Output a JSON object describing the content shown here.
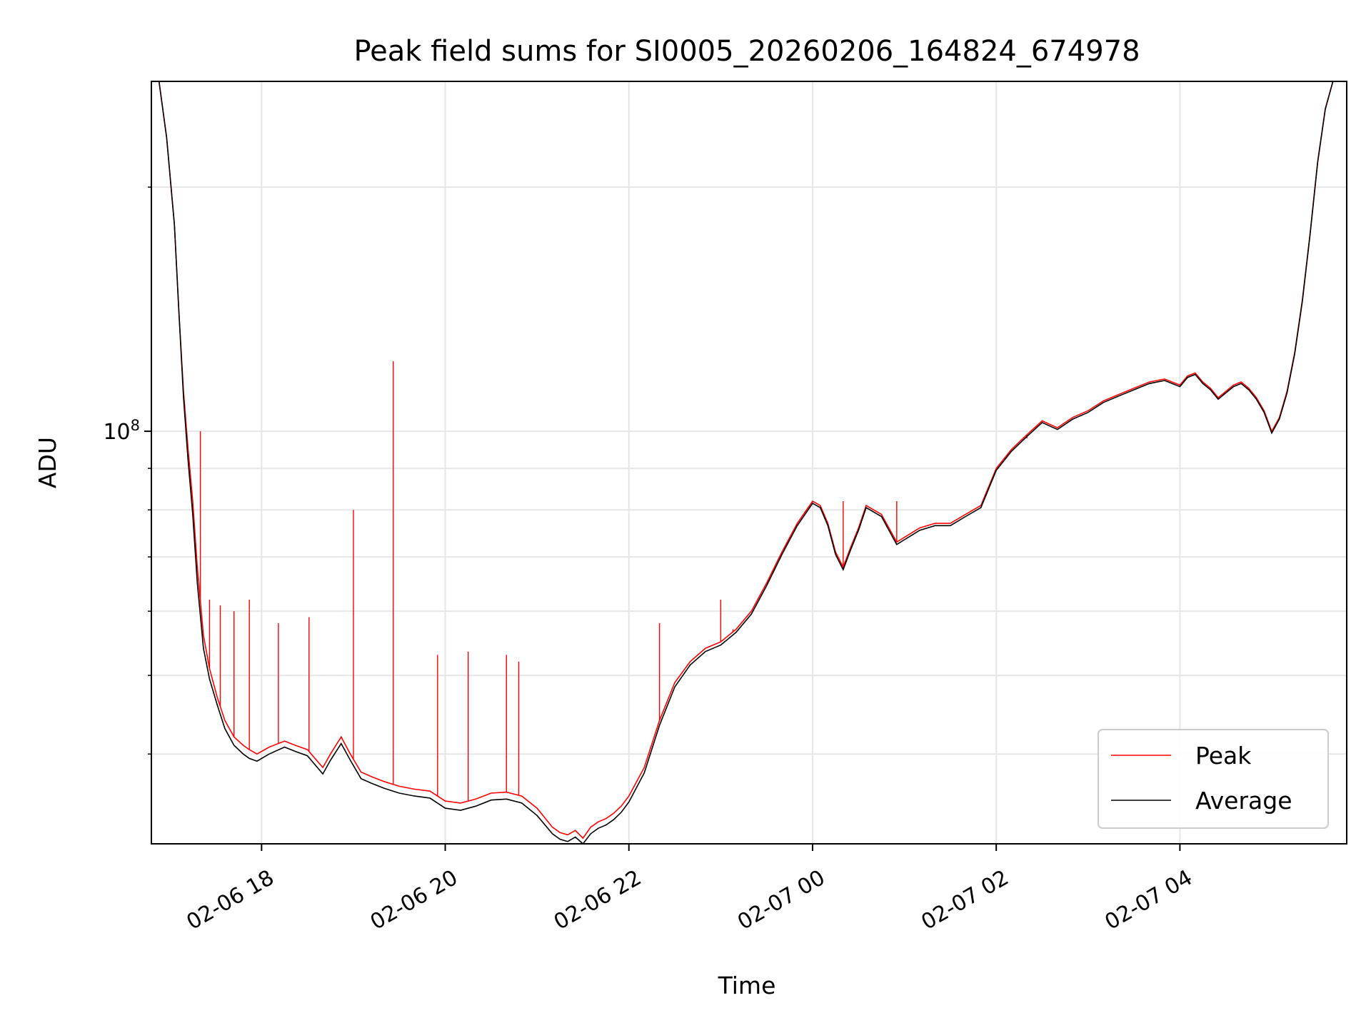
{
  "chart_data": {
    "type": "line",
    "title": "Peak field sums for SI0005_20260206_164824_674978",
    "xlabel": "Time",
    "ylabel": "ADU",
    "y_scale": "log",
    "grid": true,
    "legend_position": "lower right",
    "x_tick_labels": [
      "02-06 18",
      "02-06 20",
      "02-06 22",
      "02-07 00",
      "02-07 02",
      "02-07 04"
    ],
    "x_ticks": [
      "2026-02-06 18:00",
      "2026-02-06 20:00",
      "2026-02-06 22:00",
      "2026-02-07 00:00",
      "2026-02-07 02:00",
      "2026-02-07 04:00"
    ],
    "y_major_tick_label": "10^8",
    "y_major_tick": 100000000,
    "xlim": [
      "2026-02-06 16:48",
      "2026-02-07 05:49"
    ],
    "ylim": [
      31000000,
      270000000
    ],
    "series": [
      {
        "name": "Peak",
        "color": "#ff0000",
        "x": [
          "2026-02-06 16:48",
          "2026-02-06 16:53",
          "2026-02-06 16:58",
          "2026-02-06 17:03",
          "2026-02-06 17:06",
          "2026-02-06 17:09",
          "2026-02-06 17:12",
          "2026-02-06 17:15",
          "2026-02-06 17:18",
          "2026-02-06 17:22",
          "2026-02-06 17:26",
          "2026-02-06 17:31",
          "2026-02-06 17:36",
          "2026-02-06 17:42",
          "2026-02-06 17:48",
          "2026-02-06 17:52",
          "2026-02-06 17:57",
          "2026-02-06 18:05",
          "2026-02-06 18:15",
          "2026-02-06 18:22",
          "2026-02-06 18:30",
          "2026-02-06 18:40",
          "2026-02-06 18:45",
          "2026-02-06 18:52",
          "2026-02-06 18:58",
          "2026-02-06 19:05",
          "2026-02-06 19:12",
          "2026-02-06 19:20",
          "2026-02-06 19:30",
          "2026-02-06 19:40",
          "2026-02-06 19:50",
          "2026-02-06 20:00",
          "2026-02-06 20:10",
          "2026-02-06 20:20",
          "2026-02-06 20:30",
          "2026-02-06 20:40",
          "2026-02-06 20:50",
          "2026-02-06 21:00",
          "2026-02-06 21:10",
          "2026-02-06 21:15",
          "2026-02-06 21:20",
          "2026-02-06 21:25",
          "2026-02-06 21:30",
          "2026-02-06 21:35",
          "2026-02-06 21:40",
          "2026-02-06 21:45",
          "2026-02-06 21:50",
          "2026-02-06 21:55",
          "2026-02-06 22:00",
          "2026-02-06 22:10",
          "2026-02-06 22:20",
          "2026-02-06 22:30",
          "2026-02-06 22:40",
          "2026-02-06 22:50",
          "2026-02-06 23:00",
          "2026-02-06 23:10",
          "2026-02-06 23:20",
          "2026-02-06 23:30",
          "2026-02-06 23:40",
          "2026-02-06 23:50",
          "2026-02-07 00:00",
          "2026-02-07 00:05",
          "2026-02-07 00:10",
          "2026-02-07 00:15",
          "2026-02-07 00:20",
          "2026-02-07 00:25",
          "2026-02-07 00:30",
          "2026-02-07 00:35",
          "2026-02-07 00:45",
          "2026-02-07 00:55",
          "2026-02-07 01:00",
          "2026-02-07 01:05",
          "2026-02-07 01:10",
          "2026-02-07 01:20",
          "2026-02-07 01:30",
          "2026-02-07 01:40",
          "2026-02-07 01:50",
          "2026-02-07 02:00",
          "2026-02-07 02:10",
          "2026-02-07 02:20",
          "2026-02-07 02:30",
          "2026-02-07 02:40",
          "2026-02-07 02:50",
          "2026-02-07 03:00",
          "2026-02-07 03:10",
          "2026-02-07 03:20",
          "2026-02-07 03:30",
          "2026-02-07 03:40",
          "2026-02-07 03:50",
          "2026-02-07 04:00",
          "2026-02-07 04:05",
          "2026-02-07 04:10",
          "2026-02-07 04:15",
          "2026-02-07 04:20",
          "2026-02-07 04:25",
          "2026-02-07 04:30",
          "2026-02-07 04:35",
          "2026-02-07 04:40",
          "2026-02-07 04:45",
          "2026-02-07 04:50",
          "2026-02-07 04:55",
          "2026-02-07 05:00",
          "2026-02-07 05:05",
          "2026-02-07 05:10",
          "2026-02-07 05:15",
          "2026-02-07 05:20",
          "2026-02-07 05:25",
          "2026-02-07 05:30",
          "2026-02-07 05:35",
          "2026-02-07 05:40",
          "2026-02-07 05:49"
        ],
        "values": [
          270000000,
          270000000,
          230000000,
          180000000,
          140000000,
          112000000,
          95000000,
          82000000,
          68000000,
          56000000,
          51000000,
          47000000,
          44000000,
          42000000,
          41000000,
          40500000,
          40000000,
          40800000,
          41500000,
          41000000,
          40500000,
          38500000,
          40000000,
          42000000,
          40000000,
          38000000,
          37500000,
          37000000,
          36500000,
          36200000,
          36000000,
          35000000,
          34800000,
          35200000,
          35800000,
          35900000,
          35500000,
          34300000,
          32500000,
          32000000,
          31800000,
          32200000,
          31500000,
          32500000,
          33000000,
          33300000,
          33800000,
          34500000,
          35500000,
          38500000,
          44000000,
          49000000,
          52000000,
          54000000,
          55000000,
          57000000,
          60000000,
          65000000,
          71000000,
          77000000,
          82000000,
          81000000,
          77000000,
          71000000,
          68000000,
          72000000,
          76000000,
          81000000,
          79000000,
          73000000,
          74000000,
          75000000,
          76000000,
          77000000,
          77000000,
          79000000,
          81000000,
          90000000,
          95000000,
          99000000,
          103000000,
          101000000,
          104000000,
          106000000,
          109000000,
          111000000,
          113000000,
          115000000,
          116000000,
          114000000,
          117000000,
          118000000,
          115000000,
          113000000,
          110000000,
          112000000,
          114000000,
          115000000,
          113000000,
          110000000,
          106000000,
          100000000,
          104000000,
          112000000,
          125000000,
          145000000,
          175000000,
          215000000,
          250000000,
          270000000,
          270000000
        ]
      },
      {
        "name": "Average",
        "color": "#000000",
        "x": [
          "2026-02-06 16:48",
          "2026-02-06 16:53",
          "2026-02-06 16:58",
          "2026-02-06 17:03",
          "2026-02-06 17:06",
          "2026-02-06 17:09",
          "2026-02-06 17:12",
          "2026-02-06 17:15",
          "2026-02-06 17:18",
          "2026-02-06 17:22",
          "2026-02-06 17:26",
          "2026-02-06 17:31",
          "2026-02-06 17:36",
          "2026-02-06 17:42",
          "2026-02-06 17:48",
          "2026-02-06 17:52",
          "2026-02-06 17:57",
          "2026-02-06 18:05",
          "2026-02-06 18:15",
          "2026-02-06 18:22",
          "2026-02-06 18:30",
          "2026-02-06 18:40",
          "2026-02-06 18:45",
          "2026-02-06 18:52",
          "2026-02-06 18:58",
          "2026-02-06 19:05",
          "2026-02-06 19:12",
          "2026-02-06 19:20",
          "2026-02-06 19:30",
          "2026-02-06 19:40",
          "2026-02-06 19:50",
          "2026-02-06 20:00",
          "2026-02-06 20:10",
          "2026-02-06 20:20",
          "2026-02-06 20:30",
          "2026-02-06 20:40",
          "2026-02-06 20:50",
          "2026-02-06 21:00",
          "2026-02-06 21:10",
          "2026-02-06 21:15",
          "2026-02-06 21:20",
          "2026-02-06 21:25",
          "2026-02-06 21:30",
          "2026-02-06 21:35",
          "2026-02-06 21:40",
          "2026-02-06 21:45",
          "2026-02-06 21:50",
          "2026-02-06 21:55",
          "2026-02-06 22:00",
          "2026-02-06 22:10",
          "2026-02-06 22:20",
          "2026-02-06 22:30",
          "2026-02-06 22:40",
          "2026-02-06 22:50",
          "2026-02-06 23:00",
          "2026-02-06 23:10",
          "2026-02-06 23:20",
          "2026-02-06 23:30",
          "2026-02-06 23:40",
          "2026-02-06 23:50",
          "2026-02-07 00:00",
          "2026-02-07 00:05",
          "2026-02-07 00:10",
          "2026-02-07 00:15",
          "2026-02-07 00:20",
          "2026-02-07 00:25",
          "2026-02-07 00:30",
          "2026-02-07 00:35",
          "2026-02-07 00:45",
          "2026-02-07 00:55",
          "2026-02-07 01:00",
          "2026-02-07 01:05",
          "2026-02-07 01:10",
          "2026-02-07 01:20",
          "2026-02-07 01:30",
          "2026-02-07 01:40",
          "2026-02-07 01:50",
          "2026-02-07 02:00",
          "2026-02-07 02:10",
          "2026-02-07 02:20",
          "2026-02-07 02:30",
          "2026-02-07 02:40",
          "2026-02-07 02:50",
          "2026-02-07 03:00",
          "2026-02-07 03:10",
          "2026-02-07 03:20",
          "2026-02-07 03:30",
          "2026-02-07 03:40",
          "2026-02-07 03:50",
          "2026-02-07 04:00",
          "2026-02-07 04:05",
          "2026-02-07 04:10",
          "2026-02-07 04:15",
          "2026-02-07 04:20",
          "2026-02-07 04:25",
          "2026-02-07 04:30",
          "2026-02-07 04:35",
          "2026-02-07 04:40",
          "2026-02-07 04:45",
          "2026-02-07 04:50",
          "2026-02-07 04:55",
          "2026-02-07 05:00",
          "2026-02-07 05:05",
          "2026-02-07 05:10",
          "2026-02-07 05:15",
          "2026-02-07 05:20",
          "2026-02-07 05:25",
          "2026-02-07 05:30",
          "2026-02-07 05:35",
          "2026-02-07 05:40",
          "2026-02-07 05:49"
        ],
        "values": [
          270000000,
          270000000,
          230000000,
          180000000,
          140000000,
          110000000,
          92000000,
          79000000,
          65000000,
          54000000,
          49500000,
          46000000,
          43000000,
          41000000,
          40000000,
          39500000,
          39200000,
          40000000,
          40800000,
          40300000,
          39800000,
          37800000,
          39300000,
          41200000,
          39300000,
          37300000,
          36800000,
          36300000,
          35800000,
          35500000,
          35300000,
          34300000,
          34100000,
          34500000,
          35100000,
          35200000,
          34800000,
          33600000,
          31900000,
          31400000,
          31200000,
          31600000,
          30900000,
          31900000,
          32400000,
          32700000,
          33200000,
          33900000,
          34900000,
          37900000,
          43400000,
          48400000,
          51500000,
          53500000,
          54500000,
          56500000,
          59500000,
          64500000,
          70500000,
          76500000,
          81500000,
          80500000,
          76500000,
          70500000,
          67500000,
          71500000,
          75500000,
          80500000,
          78500000,
          72500000,
          73500000,
          74500000,
          75500000,
          76500000,
          76500000,
          78500000,
          80500000,
          89500000,
          94500000,
          98500000,
          102500000,
          100500000,
          103500000,
          105500000,
          108500000,
          110500000,
          112500000,
          114500000,
          115500000,
          113500000,
          116500000,
          117500000,
          114500000,
          112500000,
          109500000,
          111500000,
          113500000,
          114500000,
          112500000,
          109500000,
          105500000,
          99500000,
          103500000,
          111500000,
          124500000,
          144500000,
          174500000,
          214500000,
          249500000,
          270000000,
          270000000
        ]
      }
    ],
    "peak_spikes": [
      {
        "x": "2026-02-06 17:20",
        "value": 100000000
      },
      {
        "x": "2026-02-06 17:26",
        "value": 62000000
      },
      {
        "x": "2026-02-06 17:33",
        "value": 61000000
      },
      {
        "x": "2026-02-06 17:42",
        "value": 60000000
      },
      {
        "x": "2026-02-06 17:52",
        "value": 62000000
      },
      {
        "x": "2026-02-06 18:11",
        "value": 58000000
      },
      {
        "x": "2026-02-06 18:31",
        "value": 59000000
      },
      {
        "x": "2026-02-06 19:00",
        "value": 80000000
      },
      {
        "x": "2026-02-06 19:26",
        "value": 122000000
      },
      {
        "x": "2026-02-06 19:55",
        "value": 53000000
      },
      {
        "x": "2026-02-06 20:15",
        "value": 53500000
      },
      {
        "x": "2026-02-06 20:40",
        "value": 53000000
      },
      {
        "x": "2026-02-06 20:48",
        "value": 52000000
      },
      {
        "x": "2026-02-06 22:20",
        "value": 58000000
      },
      {
        "x": "2026-02-06 23:00",
        "value": 62000000
      },
      {
        "x": "2026-02-06 23:08",
        "value": 57000000
      },
      {
        "x": "2026-02-07 00:20",
        "value": 82000000
      },
      {
        "x": "2026-02-07 00:55",
        "value": 82000000
      },
      {
        "x": "2026-02-07 02:20",
        "value": 98000000
      }
    ]
  }
}
